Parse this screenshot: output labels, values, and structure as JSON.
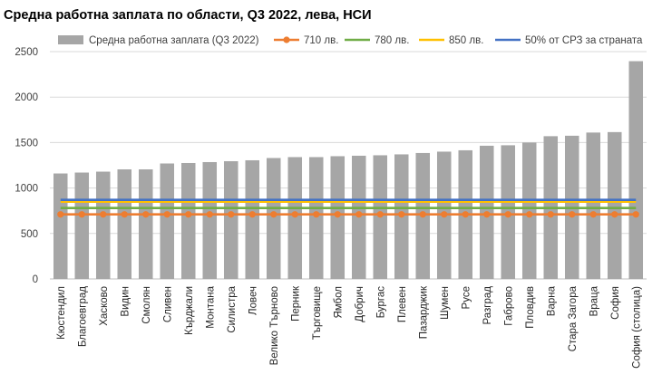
{
  "chart_data": {
    "type": "bar",
    "title": "Средна работна заплата по области, Q3 2022, лева, НСИ",
    "xlabel": "",
    "ylabel": "",
    "ylim": [
      0,
      2500
    ],
    "yticks": [
      0,
      500,
      1000,
      1500,
      2000,
      2500
    ],
    "grid": true,
    "legend_position": "top",
    "categories": [
      "Кюстендил",
      "Благоевград",
      "Хасково",
      "Видин",
      "Смолян",
      "Сливен",
      "Кърджали",
      "Монтана",
      "Силистра",
      "Ловеч",
      "Велико Търново",
      "Перник",
      "Търговище",
      "Ямбол",
      "Добрич",
      "Бургас",
      "Плевен",
      "Пазарджик",
      "Шумен",
      "Русе",
      "Разград",
      "Габрово",
      "Пловдив",
      "Варна",
      "Стара Загора",
      "Враца",
      "София",
      "София (столица)"
    ],
    "series": [
      {
        "name": "Средна работна заплата (Q3 2022)",
        "kind": "bar",
        "color": "#a6a6a6",
        "values": [
          1160,
          1170,
          1180,
          1205,
          1205,
          1270,
          1275,
          1285,
          1295,
          1305,
          1330,
          1340,
          1340,
          1350,
          1355,
          1360,
          1370,
          1385,
          1400,
          1415,
          1465,
          1470,
          1500,
          1570,
          1575,
          1610,
          1615,
          2395
        ]
      },
      {
        "name": "710 лв.",
        "kind": "line",
        "marker": "circle",
        "color": "#ed7d31",
        "value": 710
      },
      {
        "name": "780 лв.",
        "kind": "line",
        "color": "#70ad47",
        "value": 780
      },
      {
        "name": "850 лв.",
        "kind": "line",
        "color": "#ffc000",
        "value": 850
      },
      {
        "name": "50% от СРЗ за страната",
        "kind": "line",
        "color": "#4472c4",
        "value": 870
      }
    ]
  }
}
